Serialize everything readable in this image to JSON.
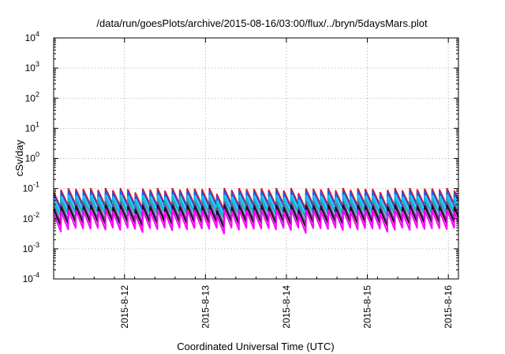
{
  "chart_data": {
    "type": "line",
    "title": "/data/run/goesPlots/archive/2015-08-16/03:00/flux/../bryn/5daysMars.plot",
    "xlabel": "Coordinated Universal Time (UTC)",
    "ylabel": "cSv/day",
    "yscale": "log",
    "ylim": [
      0.0001,
      10000
    ],
    "xlim": [
      "2015-08-11 03:00",
      "2015-08-16 03:00"
    ],
    "grid": true,
    "y_ticks": [
      {
        "base": "10",
        "exp": "-4"
      },
      {
        "base": "10",
        "exp": "-3"
      },
      {
        "base": "10",
        "exp": "-2"
      },
      {
        "base": "10",
        "exp": "-1"
      },
      {
        "base": "10",
        "exp": "0"
      },
      {
        "base": "10",
        "exp": "1"
      },
      {
        "base": "10",
        "exp": "2"
      },
      {
        "base": "10",
        "exp": "3"
      },
      {
        "base": "10",
        "exp": "4"
      }
    ],
    "x_ticks": [
      {
        "label": "2015-8-12",
        "time": "2015-08-12 00:00"
      },
      {
        "label": "2015-8-13",
        "time": "2015-08-13 00:00"
      },
      {
        "label": "2015-8-14",
        "time": "2015-08-14 00:00"
      },
      {
        "label": "2015-8-15",
        "time": "2015-08-15 00:00"
      },
      {
        "label": "2015-8-16",
        "time": "2015-08-16 00:00"
      }
    ],
    "sawtooth_period_hours": 2.2,
    "series": [
      {
        "color": "#ff0000",
        "peak": 0.1,
        "trough": 0.03
      },
      {
        "color": "#1a5fe0",
        "peak": 0.085,
        "trough": 0.026
      },
      {
        "color": "#00bfff",
        "peak": 0.06,
        "trough": 0.018
      },
      {
        "color": "#20b2aa",
        "peak": 0.045,
        "trough": 0.015
      },
      {
        "color": "#7a3fb0",
        "peak": 0.035,
        "trough": 0.01
      },
      {
        "color": "#111111",
        "peak": 0.028,
        "trough": 0.0075
      },
      {
        "color": "#ff00ff",
        "peak": 0.02,
        "trough": 0.005
      }
    ]
  }
}
